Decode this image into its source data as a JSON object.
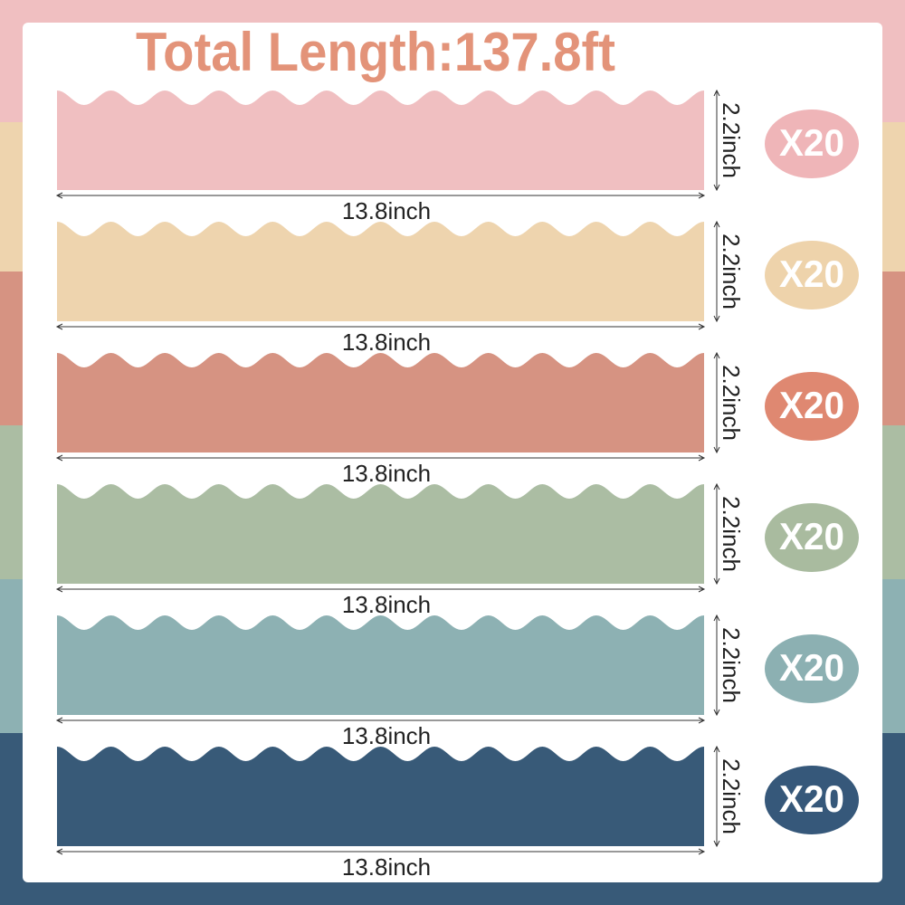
{
  "title": "Total Length:137.8ft",
  "strips": [
    {
      "color": "#f0bfc1",
      "badge_color": "#efb5b8",
      "width_label": "13.8inch",
      "height_label": "2.2inch",
      "count_label": "X20"
    },
    {
      "color": "#eed4ae",
      "badge_color": "#eed3ab",
      "width_label": "13.8inch",
      "height_label": "2.2inch",
      "count_label": "X20"
    },
    {
      "color": "#d69382",
      "badge_color": "#df8871",
      "width_label": "13.8inch",
      "height_label": "2.2inch",
      "count_label": "X20"
    },
    {
      "color": "#abbda3",
      "badge_color": "#a9bb9f",
      "width_label": "13.8inch",
      "height_label": "2.2inch",
      "count_label": "X20"
    },
    {
      "color": "#8db1b3",
      "badge_color": "#8cb0b2",
      "width_label": "13.8inch",
      "height_label": "2.2inch",
      "count_label": "X20"
    },
    {
      "color": "#385a78",
      "badge_color": "#36587a",
      "width_label": "13.8inch",
      "height_label": "2.2inch",
      "count_label": "X20"
    }
  ]
}
